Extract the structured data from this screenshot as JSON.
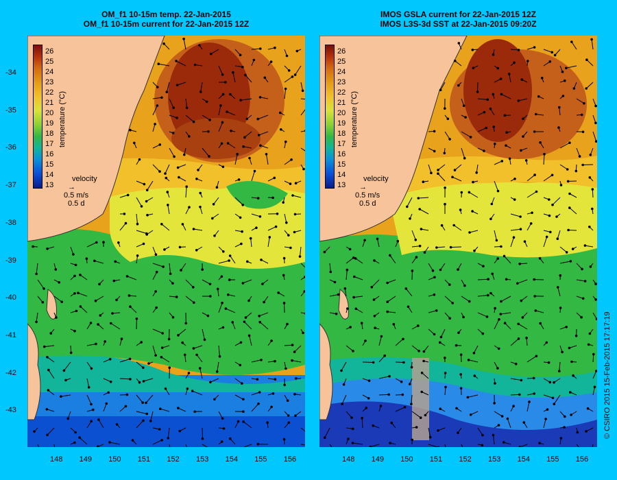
{
  "left_panel": {
    "title_line1": "OM_f1  10-15m temp. 22-Jan-2015",
    "title_line2": "OM_f1  10-15m current for 22-Jan-2015 12Z"
  },
  "right_panel": {
    "title_line1": "IMOS GSLA current for 22-Jan-2015 12Z",
    "title_line2": "IMOS L3S-3d SST at 22-Jan-2015 09:20Z"
  },
  "colorbar": {
    "ticks": [
      "26",
      "25",
      "24",
      "23",
      "22",
      "21",
      "20",
      "19",
      "18",
      "17",
      "16",
      "15",
      "14",
      "13"
    ],
    "label": "temperature (°C)"
  },
  "velocity_key": {
    "title": "velocity",
    "speed": "0.5 m/s",
    "duration": "0.5 d"
  },
  "latitude_ticks": [
    "-34",
    "-35",
    "-36",
    "-37",
    "-38",
    "-39",
    "-40",
    "-41",
    "-42",
    "-43"
  ],
  "longitude_ticks": [
    "148",
    "149",
    "150",
    "151",
    "152",
    "153",
    "154",
    "155",
    "156"
  ],
  "credit": "© CSIRO 2015   15-Feb-2015 17:17:19",
  "colors": {
    "background": "#00c8ff",
    "land": "#f6c39a",
    "warm_core": "#9a2a0a",
    "orange": "#e8a21c",
    "yellow": "#e7e63a",
    "green": "#33b844",
    "teal": "#12b59a",
    "blue": "#0a72d8",
    "deep_blue": "#0a2aa8"
  }
}
